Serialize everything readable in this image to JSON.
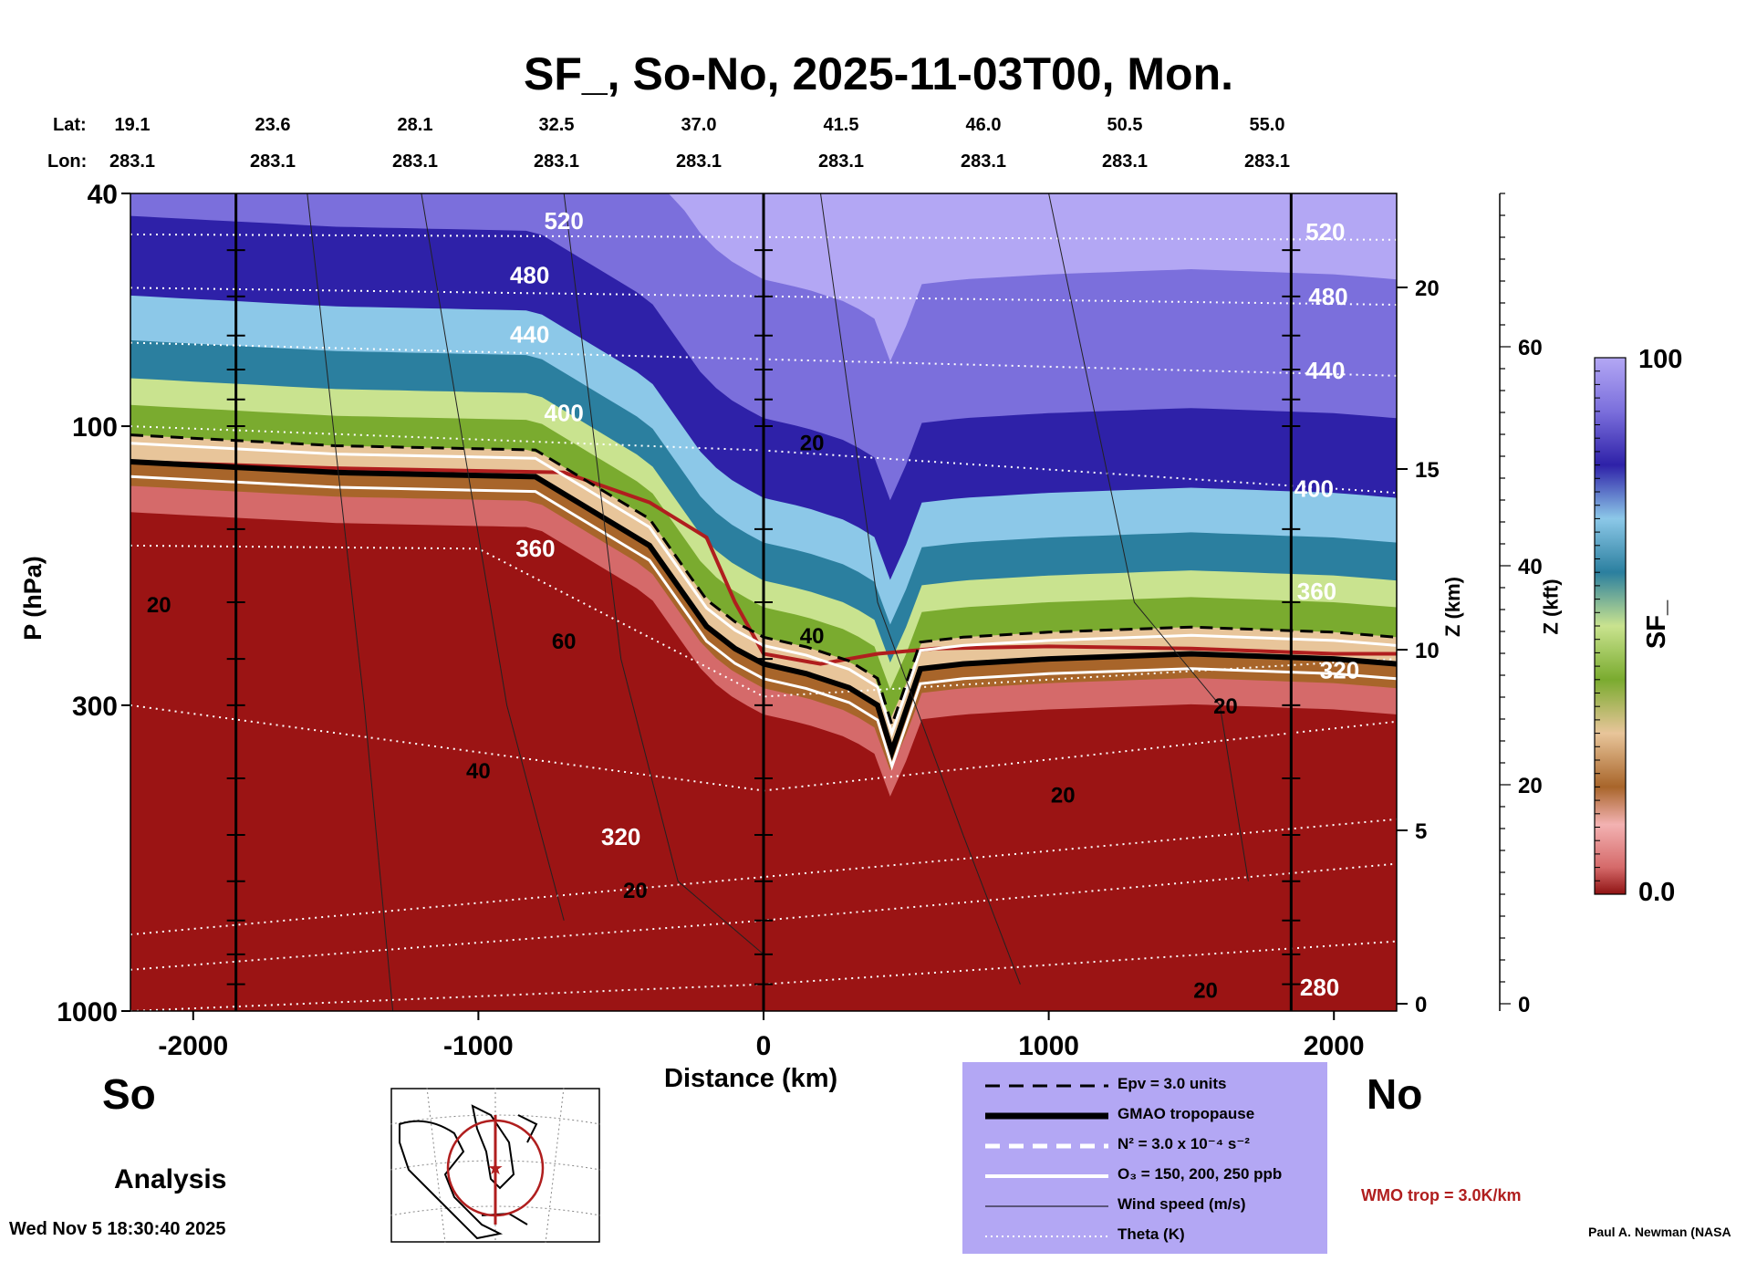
{
  "title": "SF_, So-No, 2025-11-03T00, Mon.",
  "lat_label": "Lat:",
  "lon_label": "Lon:",
  "lat_values": [
    "19.1",
    "23.6",
    "28.1",
    "32.5",
    "37.0",
    "41.5",
    "46.0",
    "50.5",
    "55.0"
  ],
  "lon_values": [
    "283.1",
    "283.1",
    "283.1",
    "283.1",
    "283.1",
    "283.1",
    "283.1",
    "283.1",
    "283.1"
  ],
  "left_label": "So",
  "right_label": "No",
  "analysis_label": "Analysis",
  "timestamp": "Wed Nov  5 18:30:40 2025",
  "credit": "Paul A. Newman (NASA",
  "wmo_label": "WMO trop = 3.0K/km",
  "legend": [
    {
      "label": "Epv = 3.0 units",
      "style": "dashed-black"
    },
    {
      "label": "GMAO tropopause",
      "style": "thick-black"
    },
    {
      "label": "N² = 3.0 x 10⁻⁴ s⁻²",
      "style": "dashed-white"
    },
    {
      "label": "O₃ = 150, 200, 250 ppb",
      "style": "solid-white"
    },
    {
      "label": "Wind speed (m/s)",
      "style": "thin-black"
    },
    {
      "label": "Theta (K)",
      "style": "dotted-white"
    }
  ],
  "colorbar": {
    "label": "SF_",
    "max_label": "100",
    "min_label": "0.0"
  },
  "colors": {
    "low": "#9b1414",
    "brown": "#a8652a",
    "tan": "#e8c59a",
    "green": "#7aab2f",
    "lightgreen": "#c9e38f",
    "teal": "#2b7f9f",
    "lightblue": "#8cc8e8",
    "navy": "#2e21a8",
    "violet": "#7b6fdc",
    "lavender": "#b3a7f4",
    "wmo": "#b01e1e",
    "legend_bg": "#b3a7f4"
  },
  "chart_data": {
    "type": "heatmap",
    "title": "SF_, So-No, 2025-11-03T00, Mon.",
    "xlabel": "Distance (km)",
    "ylabel": "P (hPa)",
    "y2label": "Z (km)",
    "y3label": "Z (kft)",
    "x_ticks": [
      -2000,
      -1000,
      0,
      1000,
      2000
    ],
    "x_tick_labels": [
      "-2000",
      "-1000",
      "0",
      "1000",
      "2000"
    ],
    "xlim": [
      -2220,
      2220
    ],
    "p_ticks": [
      40,
      100,
      300,
      1000
    ],
    "p_tick_labels": [
      "40",
      "100",
      "300",
      "1000"
    ],
    "ylim_hpa": [
      1000,
      40
    ],
    "y_scale": "log",
    "z_km_ticks": [
      0,
      5,
      10,
      15,
      20
    ],
    "z_kft_ticks": [
      0,
      20,
      40,
      60
    ],
    "zlim_kft": [
      0,
      74
    ],
    "colorbar_range": [
      0.0,
      100
    ],
    "tropopause_p": [
      [
        -2220,
        115
      ],
      [
        -1500,
        120
      ],
      [
        -800,
        122
      ],
      [
        -400,
        160
      ],
      [
        -200,
        220
      ],
      [
        -100,
        240
      ],
      [
        0,
        255
      ],
      [
        150,
        265
      ],
      [
        300,
        280
      ],
      [
        400,
        300
      ],
      [
        450,
        360
      ],
      [
        550,
        260
      ],
      [
        700,
        255
      ],
      [
        1000,
        250
      ],
      [
        1500,
        245
      ],
      [
        2000,
        250
      ],
      [
        2220,
        255
      ]
    ],
    "wmo_trop_p": [
      [
        -2220,
        115
      ],
      [
        -1500,
        118
      ],
      [
        -700,
        120
      ],
      [
        -400,
        135
      ],
      [
        -200,
        155
      ],
      [
        -100,
        200
      ],
      [
        0,
        245
      ],
      [
        200,
        255
      ],
      [
        400,
        245
      ],
      [
        600,
        240
      ],
      [
        1000,
        238
      ],
      [
        1500,
        240
      ],
      [
        2000,
        245
      ],
      [
        2220,
        245
      ]
    ],
    "theta_labels": [
      {
        "x": -700,
        "p": 46,
        "text": "520"
      },
      {
        "x": -820,
        "p": 57,
        "text": "480"
      },
      {
        "x": -820,
        "p": 72,
        "text": "440"
      },
      {
        "x": -700,
        "p": 98,
        "text": "400"
      },
      {
        "x": -800,
        "p": 167,
        "text": "360"
      },
      {
        "x": -500,
        "p": 520,
        "text": "320"
      },
      {
        "x": 1970,
        "p": 48,
        "text": "520"
      },
      {
        "x": 1980,
        "p": 62,
        "text": "480"
      },
      {
        "x": 1970,
        "p": 83,
        "text": "440"
      },
      {
        "x": 1930,
        "p": 132,
        "text": "400"
      },
      {
        "x": 1940,
        "p": 198,
        "text": "360"
      },
      {
        "x": 2020,
        "p": 270,
        "text": "320"
      },
      {
        "x": 1950,
        "p": 940,
        "text": "280"
      }
    ],
    "wind_labels": [
      {
        "x": -2120,
        "p": 208,
        "text": "20"
      },
      {
        "x": -700,
        "p": 240,
        "text": "60"
      },
      {
        "x": -1000,
        "p": 400,
        "text": "40"
      },
      {
        "x": -450,
        "p": 640,
        "text": "20"
      },
      {
        "x": 170,
        "p": 235,
        "text": "40"
      },
      {
        "x": 170,
        "p": 110,
        "text": "20"
      },
      {
        "x": 1050,
        "p": 440,
        "text": "20"
      },
      {
        "x": 1620,
        "p": 310,
        "text": "20"
      },
      {
        "x": 1550,
        "p": 950,
        "text": "20"
      }
    ],
    "vertical_lines_x": [
      -1850,
      0,
      1850
    ]
  }
}
